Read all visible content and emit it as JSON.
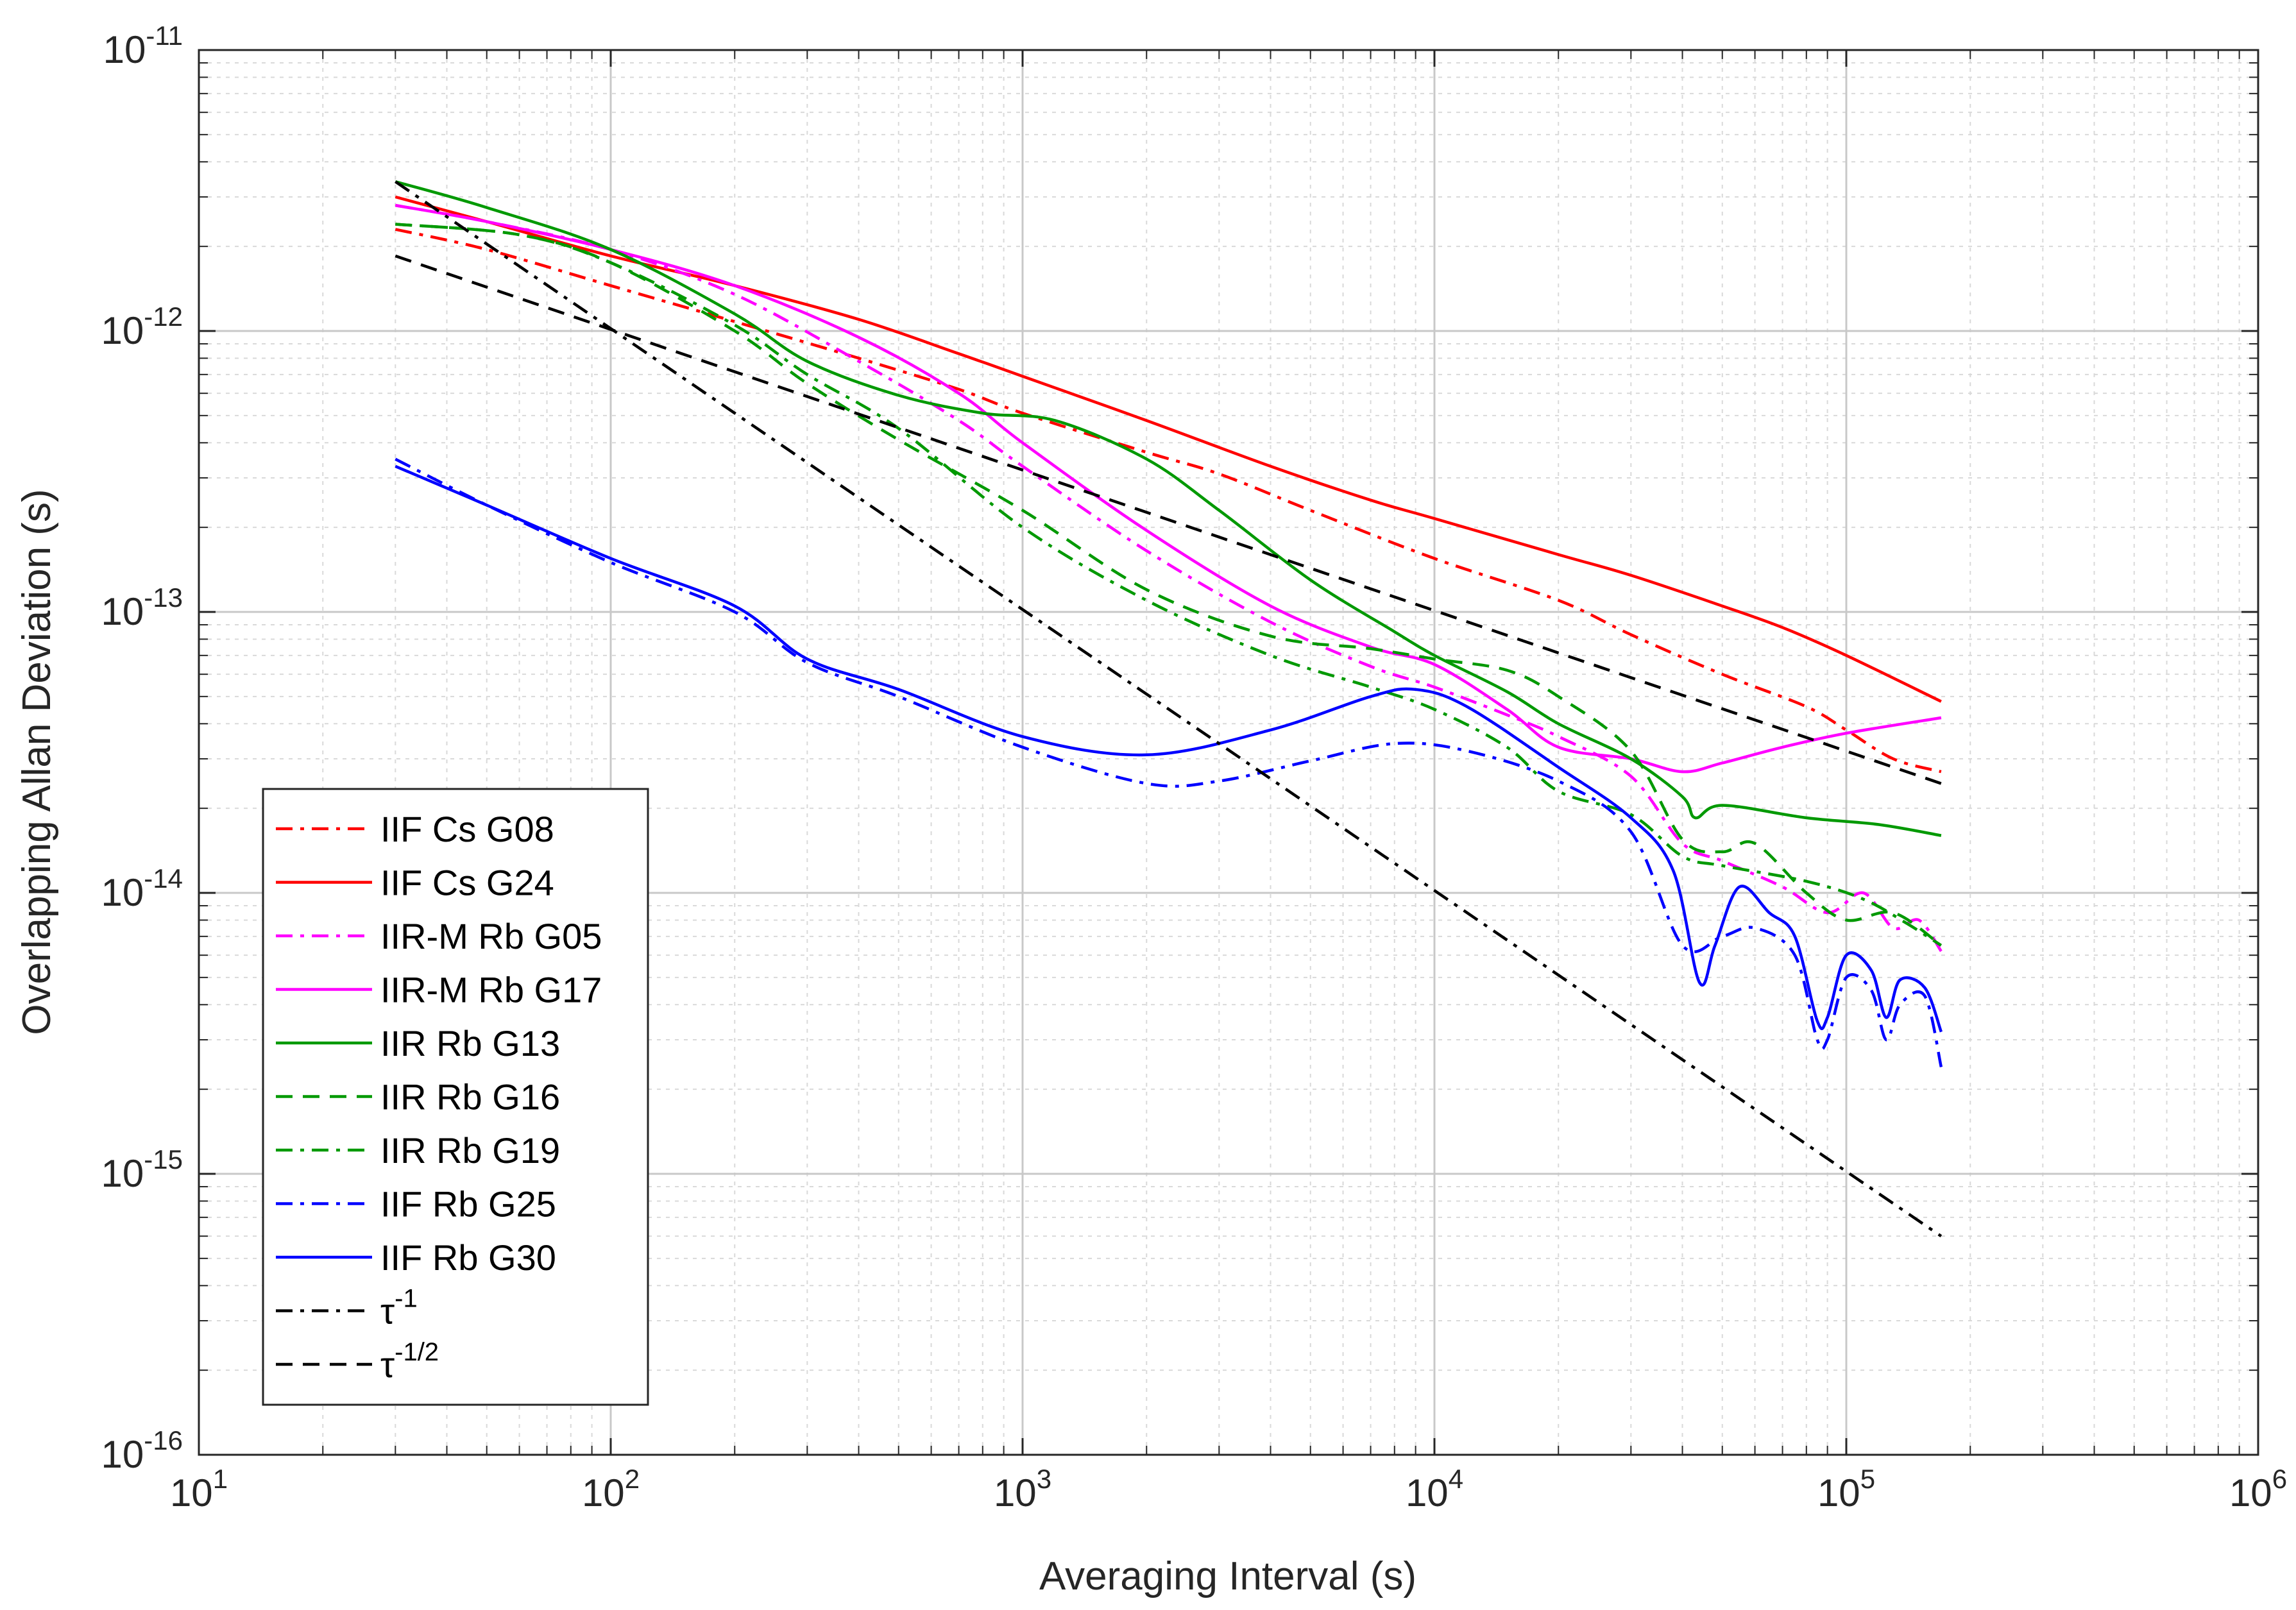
{
  "chart_data": {
    "type": "line",
    "title": "",
    "xlabel": "Averaging Interval (s)",
    "ylabel": "Overlapping Allan Deviation (s)",
    "xscale": "log",
    "yscale": "log",
    "xlim": [
      10,
      1000000
    ],
    "ylim": [
      1e-16,
      1e-11
    ],
    "grid": true,
    "legend_position": "bottom-left",
    "x_ticks": [
      {
        "base": "10",
        "exp": "1",
        "value": 10
      },
      {
        "base": "10",
        "exp": "2",
        "value": 100
      },
      {
        "base": "10",
        "exp": "3",
        "value": 1000
      },
      {
        "base": "10",
        "exp": "4",
        "value": 10000
      },
      {
        "base": "10",
        "exp": "5",
        "value": 100000
      },
      {
        "base": "10",
        "exp": "6",
        "value": 1000000
      }
    ],
    "y_ticks": [
      {
        "base": "10",
        "exp": "-11",
        "value": 1e-11
      },
      {
        "base": "10",
        "exp": "-12",
        "value": 1e-12
      },
      {
        "base": "10",
        "exp": "-13",
        "value": 1e-13
      },
      {
        "base": "10",
        "exp": "-14",
        "value": 1e-14
      },
      {
        "base": "10",
        "exp": "-15",
        "value": 1e-15
      },
      {
        "base": "10",
        "exp": "-16",
        "value": 1e-16
      }
    ],
    "series": [
      {
        "name": "IIF Cs G08",
        "color": "#ff0000",
        "dash": "dashdot",
        "points": [
          [
            30,
            2.3e-12
          ],
          [
            50,
            1.95e-12
          ],
          [
            100,
            1.45e-12
          ],
          [
            200,
            1.08e-12
          ],
          [
            400,
            8e-13
          ],
          [
            700,
            6.2e-13
          ],
          [
            1000,
            5.1e-13
          ],
          [
            2000,
            3.7e-13
          ],
          [
            3000,
            3.1e-13
          ],
          [
            5000,
            2.3e-13
          ],
          [
            10000,
            1.55e-13
          ],
          [
            20000,
            1.1e-13
          ],
          [
            30000,
            8.3e-14
          ],
          [
            50000,
            6e-14
          ],
          [
            80000,
            4.6e-14
          ],
          [
            100000,
            3.8e-14
          ],
          [
            130000,
            3e-14
          ],
          [
            170000,
            2.7e-14
          ]
        ]
      },
      {
        "name": "IIF Cs G24",
        "color": "#ff0000",
        "dash": "solid",
        "points": [
          [
            30,
            3e-12
          ],
          [
            50,
            2.45e-12
          ],
          [
            100,
            1.85e-12
          ],
          [
            200,
            1.45e-12
          ],
          [
            400,
            1.1e-12
          ],
          [
            700,
            8.3e-13
          ],
          [
            1000,
            6.9e-13
          ],
          [
            2000,
            4.8e-13
          ],
          [
            4000,
            3.3e-13
          ],
          [
            7000,
            2.5e-13
          ],
          [
            10000,
            2.15e-13
          ],
          [
            20000,
            1.6e-13
          ],
          [
            30000,
            1.35e-13
          ],
          [
            50000,
            1.05e-13
          ],
          [
            70000,
            8.8e-14
          ],
          [
            100000,
            7e-14
          ],
          [
            170000,
            4.8e-14
          ]
        ]
      },
      {
        "name": "IIR-M Rb G05",
        "color": "#ff00ff",
        "dash": "dashdot",
        "points": [
          [
            30,
            2.8e-12
          ],
          [
            50,
            2.45e-12
          ],
          [
            100,
            1.95e-12
          ],
          [
            200,
            1.35e-12
          ],
          [
            400,
            7.8e-13
          ],
          [
            700,
            4.8e-13
          ],
          [
            1000,
            3.3e-13
          ],
          [
            2000,
            1.65e-13
          ],
          [
            4000,
            9.2e-14
          ],
          [
            7000,
            6.4e-14
          ],
          [
            10000,
            5.4e-14
          ],
          [
            15000,
            4.3e-14
          ],
          [
            20000,
            3.6e-14
          ],
          [
            30000,
            2.6e-14
          ],
          [
            40000,
            1.5e-14
          ],
          [
            50000,
            1.3e-14
          ],
          [
            70000,
            1.05e-14
          ],
          [
            90000,
            8.5e-15
          ],
          [
            110000,
            1e-14
          ],
          [
            130000,
            7.5e-15
          ],
          [
            150000,
            8e-15
          ],
          [
            170000,
            6.2e-15
          ]
        ]
      },
      {
        "name": "IIR-M Rb G17",
        "color": "#ff00ff",
        "dash": "solid",
        "points": [
          [
            30,
            2.8e-12
          ],
          [
            50,
            2.45e-12
          ],
          [
            100,
            1.95e-12
          ],
          [
            200,
            1.45e-12
          ],
          [
            400,
            9.5e-13
          ],
          [
            700,
            6e-13
          ],
          [
            1000,
            4e-13
          ],
          [
            2000,
            1.95e-13
          ],
          [
            4000,
            1.05e-13
          ],
          [
            7000,
            7.5e-14
          ],
          [
            10000,
            6.5e-14
          ],
          [
            15000,
            4.5e-14
          ],
          [
            20000,
            3.3e-14
          ],
          [
            30000,
            3e-14
          ],
          [
            40000,
            2.7e-14
          ],
          [
            50000,
            2.9e-14
          ],
          [
            70000,
            3.3e-14
          ],
          [
            100000,
            3.7e-14
          ],
          [
            170000,
            4.2e-14
          ]
        ]
      },
      {
        "name": "IIR Rb G13",
        "color": "#009900",
        "dash": "solid",
        "points": [
          [
            30,
            3.4e-12
          ],
          [
            50,
            2.75e-12
          ],
          [
            100,
            1.95e-12
          ],
          [
            200,
            1.15e-12
          ],
          [
            300,
            7.8e-13
          ],
          [
            500,
            5.9e-13
          ],
          [
            800,
            5.1e-13
          ],
          [
            1200,
            4.8e-13
          ],
          [
            2000,
            3.5e-13
          ],
          [
            3000,
            2.3e-13
          ],
          [
            5000,
            1.3e-13
          ],
          [
            8000,
            8.5e-14
          ],
          [
            10000,
            7e-14
          ],
          [
            15000,
            5.2e-14
          ],
          [
            20000,
            4e-14
          ],
          [
            30000,
            3e-14
          ],
          [
            40000,
            2.2e-14
          ],
          [
            43000,
            1.85e-14
          ],
          [
            50000,
            2.05e-14
          ],
          [
            80000,
            1.85e-14
          ],
          [
            120000,
            1.75e-14
          ],
          [
            170000,
            1.6e-14
          ]
        ]
      },
      {
        "name": "IIR Rb G16",
        "color": "#009900",
        "dash": "dashed",
        "points": [
          [
            30,
            2.4e-12
          ],
          [
            60,
            2.2e-12
          ],
          [
            100,
            1.75e-12
          ],
          [
            200,
            1e-12
          ],
          [
            300,
            6.5e-13
          ],
          [
            500,
            4.1e-13
          ],
          [
            1000,
            2.3e-13
          ],
          [
            2000,
            1.2e-13
          ],
          [
            4000,
            8.2e-14
          ],
          [
            7000,
            7.4e-14
          ],
          [
            10000,
            6.8e-14
          ],
          [
            15000,
            6.2e-14
          ],
          [
            20000,
            5e-14
          ],
          [
            30000,
            3.2e-14
          ],
          [
            40000,
            1.55e-14
          ],
          [
            50000,
            1.4e-14
          ],
          [
            60000,
            1.5e-14
          ],
          [
            80000,
            1e-14
          ],
          [
            100000,
            8e-15
          ],
          [
            130000,
            8.5e-15
          ],
          [
            170000,
            6.5e-15
          ]
        ]
      },
      {
        "name": "IIR Rb G19",
        "color": "#009900",
        "dash": "dashdot",
        "points": [
          [
            30,
            2.4e-12
          ],
          [
            60,
            2.2e-12
          ],
          [
            100,
            1.75e-12
          ],
          [
            200,
            1.05e-12
          ],
          [
            300,
            7e-13
          ],
          [
            500,
            4.5e-13
          ],
          [
            1000,
            2e-13
          ],
          [
            2000,
            1.1e-13
          ],
          [
            4000,
            7e-14
          ],
          [
            7000,
            5.4e-14
          ],
          [
            10000,
            4.5e-14
          ],
          [
            15000,
            3.3e-14
          ],
          [
            20000,
            2.3e-14
          ],
          [
            30000,
            1.9e-14
          ],
          [
            40000,
            1.35e-14
          ],
          [
            50000,
            1.25e-14
          ],
          [
            80000,
            1.1e-14
          ],
          [
            110000,
            9.5e-15
          ],
          [
            140000,
            7.8e-15
          ],
          [
            170000,
            6.5e-15
          ]
        ]
      },
      {
        "name": "IIF Rb G25",
        "color": "#0000ff",
        "dash": "dashdot",
        "points": [
          [
            30,
            3.5e-13
          ],
          [
            50,
            2.4e-13
          ],
          [
            100,
            1.5e-13
          ],
          [
            200,
            1e-13
          ],
          [
            300,
            6.6e-14
          ],
          [
            500,
            5e-14
          ],
          [
            1000,
            3.3e-14
          ],
          [
            2000,
            2.45e-14
          ],
          [
            3000,
            2.5e-14
          ],
          [
            5000,
            2.95e-14
          ],
          [
            8000,
            3.4e-14
          ],
          [
            12000,
            3.2e-14
          ],
          [
            20000,
            2.5e-14
          ],
          [
            30000,
            1.65e-14
          ],
          [
            40000,
            6.5e-15
          ],
          [
            50000,
            7e-15
          ],
          [
            60000,
            7.5e-15
          ],
          [
            75000,
            6e-15
          ],
          [
            85000,
            3e-15
          ],
          [
            90000,
            3e-15
          ],
          [
            100000,
            5e-15
          ],
          [
            115000,
            4.5e-15
          ],
          [
            125000,
            3e-15
          ],
          [
            135000,
            4e-15
          ],
          [
            155000,
            4.3e-15
          ],
          [
            170000,
            2.4e-15
          ]
        ]
      },
      {
        "name": "IIF Rb G30",
        "color": "#0000ff",
        "dash": "solid",
        "points": [
          [
            30,
            3.3e-13
          ],
          [
            50,
            2.4e-13
          ],
          [
            100,
            1.55e-13
          ],
          [
            200,
            1.05e-13
          ],
          [
            300,
            6.8e-14
          ],
          [
            500,
            5.3e-14
          ],
          [
            1000,
            3.6e-14
          ],
          [
            2000,
            3.1e-14
          ],
          [
            4000,
            3.8e-14
          ],
          [
            7000,
            5e-14
          ],
          [
            9000,
            5.3e-14
          ],
          [
            12000,
            4.6e-14
          ],
          [
            20000,
            2.8e-14
          ],
          [
            30000,
            1.85e-14
          ],
          [
            38000,
            1.2e-14
          ],
          [
            44000,
            4.8e-15
          ],
          [
            48000,
            6.5e-15
          ],
          [
            55000,
            1.05e-14
          ],
          [
            65000,
            8.5e-15
          ],
          [
            75000,
            7e-15
          ],
          [
            85000,
            3.5e-15
          ],
          [
            90000,
            3.6e-15
          ],
          [
            100000,
            6e-15
          ],
          [
            115000,
            5.3e-15
          ],
          [
            125000,
            3.6e-15
          ],
          [
            135000,
            4.9e-15
          ],
          [
            155000,
            4.6e-15
          ],
          [
            170000,
            3.2e-15
          ]
        ]
      },
      {
        "name": "τ^-1",
        "color": "#000000",
        "dash": "dashdot",
        "points": [
          [
            30,
            3.4e-12
          ],
          [
            170000,
            6e-16
          ]
        ]
      },
      {
        "name": "τ^-1/2",
        "color": "#000000",
        "dash": "dashed",
        "points": [
          [
            30,
            1.85e-12
          ],
          [
            170000,
            2.45e-14
          ]
        ]
      }
    ],
    "legend": [
      {
        "label": "IIF Cs G08",
        "sup": ""
      },
      {
        "label": "IIF Cs G24",
        "sup": ""
      },
      {
        "label": "IIR-M Rb G05",
        "sup": ""
      },
      {
        "label": "IIR-M Rb G17",
        "sup": ""
      },
      {
        "label": "IIR Rb G13",
        "sup": ""
      },
      {
        "label": "IIR Rb G16",
        "sup": ""
      },
      {
        "label": "IIR Rb G19",
        "sup": ""
      },
      {
        "label": "IIF Rb G25",
        "sup": ""
      },
      {
        "label": "IIF Rb G30",
        "sup": ""
      },
      {
        "label": "τ",
        "sup": "-1"
      },
      {
        "label": "τ",
        "sup": "-1/2"
      }
    ]
  }
}
